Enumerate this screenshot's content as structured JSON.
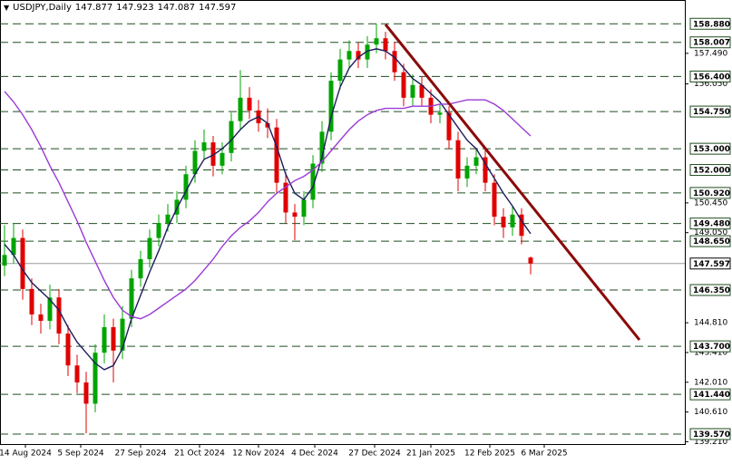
{
  "chart_data": {
    "type": "candlestick",
    "title": "USDJPY,Daily",
    "x": [
      0,
      1,
      2,
      3,
      4,
      5,
      6,
      7,
      8,
      9,
      10,
      11,
      12,
      13,
      14,
      15,
      16,
      17,
      18,
      19,
      20,
      21,
      22,
      23,
      24,
      25,
      26,
      27,
      28,
      29,
      30,
      31,
      32,
      33,
      34,
      35,
      36,
      37,
      38,
      39,
      40,
      41,
      42,
      43,
      44,
      45,
      46,
      47,
      48,
      49,
      50,
      51,
      52,
      53,
      54,
      55,
      56,
      57,
      58
    ],
    "open": [
      147.5,
      148.0,
      148.8,
      146.4,
      145.2,
      144.9,
      146.0,
      144.3,
      142.8,
      142.0,
      141.0,
      143.4,
      144.6,
      143.5,
      145.0,
      146.9,
      147.8,
      148.8,
      149.5,
      149.9,
      150.6,
      151.8,
      152.9,
      153.3,
      152.2,
      152.8,
      154.3,
      155.4,
      154.8,
      154.2,
      154.0,
      151.4,
      150.0,
      149.8,
      150.6,
      152.3,
      153.8,
      156.2,
      157.2,
      157.6,
      157.2,
      157.9,
      158.2,
      157.6,
      156.6,
      155.4,
      156.0,
      155.4,
      154.6,
      154.7,
      153.4,
      151.6,
      152.2,
      152.6,
      151.4,
      149.8,
      149.3,
      149.9,
      147.877
    ],
    "high": [
      149.4,
      149.5,
      149.2,
      146.9,
      145.7,
      146.6,
      146.4,
      144.7,
      143.3,
      142.5,
      143.8,
      145.2,
      145.0,
      145.6,
      147.3,
      148.2,
      149.2,
      149.9,
      150.4,
      151.0,
      152.2,
      153.4,
      153.9,
      153.6,
      153.3,
      154.7,
      156.7,
      155.9,
      155.3,
      154.9,
      154.4,
      151.9,
      150.4,
      151.0,
      152.7,
      154.3,
      156.6,
      157.7,
      158.1,
      158.0,
      158.3,
      158.88,
      158.5,
      158.0,
      157.0,
      156.5,
      156.4,
      155.8,
      155.1,
      155.0,
      153.8,
      152.6,
      153.0,
      153.0,
      151.8,
      150.2,
      150.3,
      150.2,
      147.923
    ],
    "low": [
      147.0,
      147.6,
      145.9,
      144.7,
      144.3,
      144.5,
      143.8,
      142.3,
      141.5,
      139.6,
      140.6,
      142.9,
      142.0,
      143.1,
      144.6,
      146.5,
      147.4,
      148.4,
      149.1,
      149.5,
      150.2,
      151.4,
      152.5,
      151.7,
      151.8,
      152.4,
      153.9,
      154.4,
      153.8,
      153.5,
      150.9,
      149.5,
      148.7,
      149.4,
      150.2,
      151.9,
      153.4,
      155.8,
      156.8,
      156.8,
      156.8,
      157.5,
      157.2,
      156.2,
      155.0,
      155.0,
      155.0,
      154.2,
      154.2,
      153.0,
      151.0,
      151.2,
      151.8,
      151.0,
      149.4,
      148.8,
      148.9,
      148.5,
      147.087
    ],
    "close": [
      148.0,
      148.8,
      146.4,
      145.2,
      144.9,
      146.0,
      144.3,
      142.8,
      142.0,
      141.0,
      143.4,
      144.6,
      143.5,
      145.0,
      146.9,
      147.8,
      148.8,
      149.5,
      149.9,
      150.6,
      151.8,
      152.9,
      153.3,
      152.2,
      152.8,
      154.3,
      155.4,
      154.8,
      154.2,
      154.0,
      151.4,
      150.0,
      149.8,
      150.6,
      152.3,
      153.8,
      156.2,
      157.2,
      157.6,
      157.2,
      157.9,
      158.2,
      157.6,
      156.6,
      155.4,
      156.0,
      155.4,
      154.6,
      154.7,
      153.4,
      151.6,
      152.2,
      152.6,
      151.4,
      149.8,
      149.3,
      149.9,
      148.9,
      147.597
    ],
    "up_color": "#00a400",
    "down_color": "#e00000",
    "series": [
      {
        "color": "#1c1c5c",
        "values": [
          148.5,
          148.0,
          147.3,
          146.7,
          146.3,
          145.9,
          145.4,
          144.6,
          143.9,
          143.4,
          142.9,
          142.6,
          142.8,
          143.6,
          145.0,
          146.1,
          147.2,
          148.2,
          149.3,
          150.2,
          151.0,
          151.8,
          152.5,
          152.7,
          153.0,
          153.4,
          153.9,
          154.3,
          154.5,
          154.2,
          153.1,
          151.8,
          150.9,
          150.6,
          151.2,
          152.6,
          154.5,
          155.9,
          156.8,
          157.3,
          157.6,
          157.7,
          157.6,
          157.3,
          156.8,
          156.3,
          156.0,
          155.6,
          155.2,
          154.6,
          154.0,
          153.4,
          153.0,
          152.3,
          151.6,
          150.9,
          150.3,
          149.6,
          149.0
        ]
      },
      {
        "color": "#9b3ad6",
        "values": [
          155.7,
          155.2,
          154.6,
          153.9,
          153.1,
          152.2,
          151.4,
          150.5,
          149.6,
          148.6,
          147.7,
          146.8,
          146.0,
          145.4,
          145.1,
          145.0,
          145.2,
          145.5,
          145.8,
          146.1,
          146.4,
          146.8,
          147.3,
          147.8,
          148.4,
          148.9,
          149.3,
          149.6,
          150.0,
          150.5,
          150.9,
          151.2,
          151.5,
          151.7,
          152.0,
          152.4,
          152.9,
          153.4,
          153.9,
          154.3,
          154.6,
          154.8,
          154.9,
          154.9,
          154.9,
          155.0,
          155.0,
          155.0,
          155.1,
          155.1,
          155.2,
          155.3,
          155.3,
          155.3,
          155.1,
          154.8,
          154.4,
          154.0,
          153.6
        ]
      }
    ],
    "trendline": {
      "color": "#8b0a0a",
      "x": [
        42,
        70
      ],
      "values": [
        158.85,
        144.0
      ]
    },
    "levels": [
      {
        "value": 158.88,
        "label": "158.880"
      },
      {
        "value": 158.007,
        "label": "158.007"
      },
      {
        "value": 156.4,
        "label": "156.400"
      },
      {
        "value": 154.75,
        "label": "154.750"
      },
      {
        "value": 153.0,
        "label": "153.000"
      },
      {
        "value": 152.0,
        "label": "152.000"
      },
      {
        "value": 150.92,
        "label": "150.920"
      },
      {
        "value": 149.48,
        "label": "149.480"
      },
      {
        "value": 148.65,
        "label": "148.650"
      },
      {
        "value": 146.35,
        "label": "146.350"
      },
      {
        "value": 143.7,
        "label": "143.700"
      },
      {
        "value": 141.44,
        "label": "141.440"
      },
      {
        "value": 139.57,
        "label": "139.570"
      }
    ],
    "level_color": "#1f4d1f",
    "xlim": [
      -0.5,
      75
    ],
    "ylim": [
      139.1,
      160.0
    ],
    "yticks": [
      {
        "value": 157.49,
        "label": "157.490"
      },
      {
        "value": 156.05,
        "label": "156.050"
      },
      {
        "value": 150.45,
        "label": "150.450"
      },
      {
        "value": 149.05,
        "label": "149.050"
      },
      {
        "value": 144.81,
        "label": "144.810"
      },
      {
        "value": 143.41,
        "label": "143.410"
      },
      {
        "value": 142.01,
        "label": "142.010"
      },
      {
        "value": 140.61,
        "label": "140.610"
      },
      {
        "value": 139.21,
        "label": "139.210"
      }
    ],
    "xticks": [
      {
        "value": 2.3,
        "label": "14 Aug 2024"
      },
      {
        "value": 8.4,
        "label": "5 Sep 2024"
      },
      {
        "value": 15.0,
        "label": "27 Sep 2024"
      },
      {
        "value": 21.5,
        "label": "21 Oct 2024"
      },
      {
        "value": 28.0,
        "label": "12 Nov 2024"
      },
      {
        "value": 34.2,
        "label": "4 Dec 2024"
      },
      {
        "value": 40.8,
        "label": "27 Dec 2024"
      },
      {
        "value": 47.0,
        "label": "21 Jan 2025"
      },
      {
        "value": 53.5,
        "label": "12 Feb 2025"
      },
      {
        "value": 59.5,
        "label": "6 Mar 2025"
      }
    ]
  }
}
